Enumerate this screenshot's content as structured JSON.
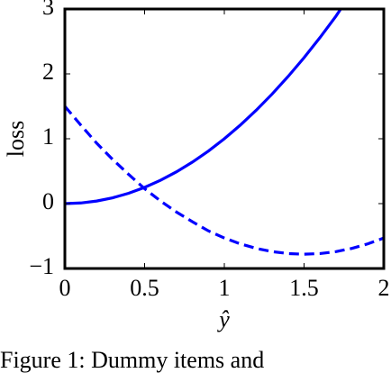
{
  "chart_data": {
    "type": "line",
    "xlabel": "ŷ",
    "ylabel": "loss",
    "caption": "Figure 1: Dummy items and",
    "xlim": [
      0,
      2
    ],
    "ylim": [
      -1,
      3
    ],
    "xticks": [
      0,
      0.5,
      1,
      1.5,
      2
    ],
    "yticks": [
      {
        "value": -1,
        "label": "−1"
      },
      0,
      1,
      2,
      3
    ],
    "series": [
      {
        "color": "#0000ff",
        "style": "solid",
        "x": [
          0,
          0.1,
          0.2,
          0.3,
          0.4,
          0.5,
          0.6,
          0.7,
          0.8,
          0.9,
          1.0,
          1.1,
          1.2,
          1.3,
          1.4,
          1.5,
          1.6,
          1.7,
          1.73
        ],
        "values": [
          0,
          0.01,
          0.04,
          0.09,
          0.16,
          0.25,
          0.36,
          0.49,
          0.64,
          0.81,
          1,
          1.21,
          1.44,
          1.69,
          1.96,
          2.25,
          2.56,
          2.89,
          3
        ]
      },
      {
        "color": "#0000ff",
        "style": "dashed",
        "x": [
          0,
          0.1,
          0.2,
          0.3,
          0.4,
          0.5,
          0.6,
          0.7,
          0.8,
          0.9,
          1.0,
          1.1,
          1.2,
          1.3,
          1.4,
          1.5,
          1.6,
          1.7,
          1.8,
          1.9,
          2.0
        ],
        "values": [
          1.5,
          1.21,
          0.93,
          0.68,
          0.45,
          0.23,
          0.04,
          -0.13,
          -0.28,
          -0.42,
          -0.53,
          -0.62,
          -0.69,
          -0.74,
          -0.77,
          -0.78,
          -0.77,
          -0.74,
          -0.69,
          -0.62,
          -0.53
        ]
      }
    ]
  }
}
